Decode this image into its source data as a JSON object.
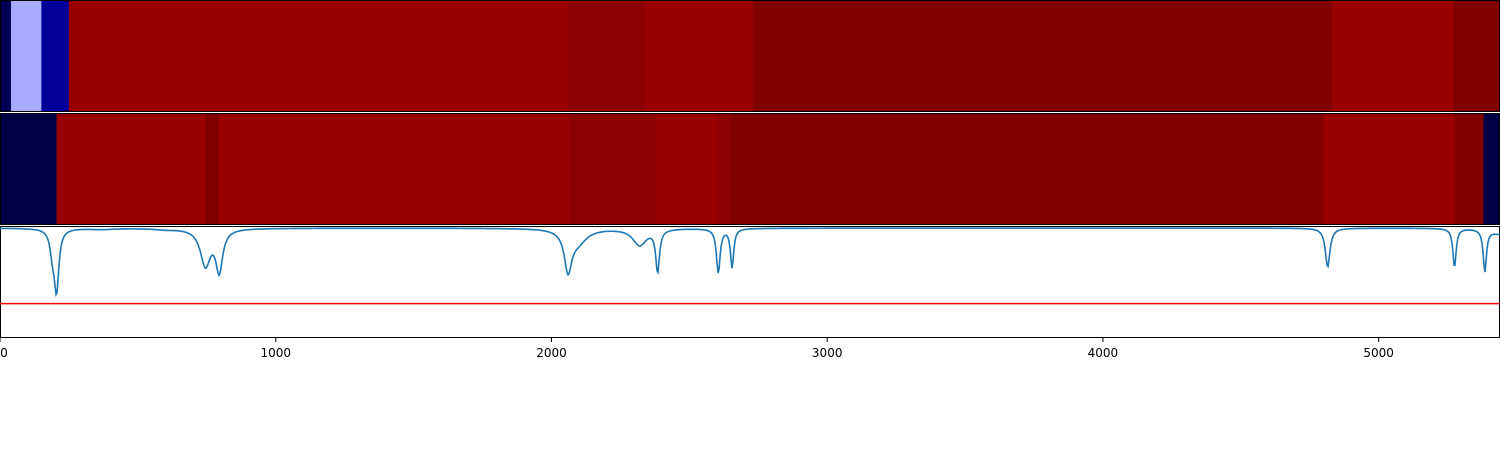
{
  "chart_data": [
    {
      "type": "heatmap",
      "title": "",
      "xlim": [
        0,
        5440
      ],
      "segments": [
        {
          "start": 0,
          "end": 40,
          "color": "#000055"
        },
        {
          "start": 40,
          "end": 150,
          "color": "#aaaaff"
        },
        {
          "start": 150,
          "end": 250,
          "color": "#000099"
        },
        {
          "start": 250,
          "end": 2060,
          "color": "#990000"
        },
        {
          "start": 2060,
          "end": 2340,
          "color": "#8b0000"
        },
        {
          "start": 2340,
          "end": 2730,
          "color": "#990000"
        },
        {
          "start": 2730,
          "end": 4830,
          "color": "#800000"
        },
        {
          "start": 4830,
          "end": 5270,
          "color": "#990000"
        },
        {
          "start": 5270,
          "end": 5440,
          "color": "#800000"
        }
      ]
    },
    {
      "type": "heatmap",
      "title": "",
      "xlim": [
        0,
        5440
      ],
      "segments": [
        {
          "start": 0,
          "end": 205,
          "color": "#000044"
        },
        {
          "start": 205,
          "end": 745,
          "color": "#990000"
        },
        {
          "start": 745,
          "end": 795,
          "color": "#800000"
        },
        {
          "start": 795,
          "end": 2065,
          "color": "#990000"
        },
        {
          "start": 2065,
          "end": 2380,
          "color": "#8b0000"
        },
        {
          "start": 2380,
          "end": 2600,
          "color": "#990000"
        },
        {
          "start": 2600,
          "end": 2650,
          "color": "#8b0000"
        },
        {
          "start": 2650,
          "end": 4800,
          "color": "#800000"
        },
        {
          "start": 4800,
          "end": 5275,
          "color": "#990000"
        },
        {
          "start": 5275,
          "end": 5380,
          "color": "#800000"
        },
        {
          "start": 5380,
          "end": 5440,
          "color": "#000044"
        }
      ]
    },
    {
      "type": "line",
      "title": "",
      "xlabel": "",
      "ylabel": "",
      "xlim": [
        0,
        5440
      ],
      "ylim": [
        0,
        1
      ],
      "xticks": [
        0,
        1000,
        2000,
        3000,
        4000,
        5000
      ],
      "baseline": 0.99,
      "threshold": 0.31,
      "colors": {
        "line": "#1f77b4",
        "threshold": "#ff0000",
        "axes": "#000000"
      },
      "dips": [
        {
          "x": 190,
          "depth": 0.18,
          "width": 10
        },
        {
          "x": 205,
          "depth": 0.55,
          "width": 10
        },
        {
          "x": 370,
          "depth": 0.01,
          "width": 50
        },
        {
          "x": 600,
          "depth": 0.01,
          "width": 40
        },
        {
          "x": 745,
          "depth": 0.33,
          "width": 22
        },
        {
          "x": 795,
          "depth": 0.37,
          "width": 15
        },
        {
          "x": 2060,
          "depth": 0.35,
          "width": 16
        },
        {
          "x": 2095,
          "depth": 0.12,
          "width": 40
        },
        {
          "x": 2320,
          "depth": 0.15,
          "width": 30
        },
        {
          "x": 2385,
          "depth": 0.38,
          "width": 8
        },
        {
          "x": 2605,
          "depth": 0.4,
          "width": 8
        },
        {
          "x": 2655,
          "depth": 0.35,
          "width": 7
        },
        {
          "x": 4815,
          "depth": 0.35,
          "width": 10
        },
        {
          "x": 5275,
          "depth": 0.35,
          "width": 7
        },
        {
          "x": 5385,
          "depth": 0.38,
          "width": 7
        },
        {
          "x": 5440,
          "depth": 0.05,
          "width": 40
        }
      ]
    }
  ]
}
